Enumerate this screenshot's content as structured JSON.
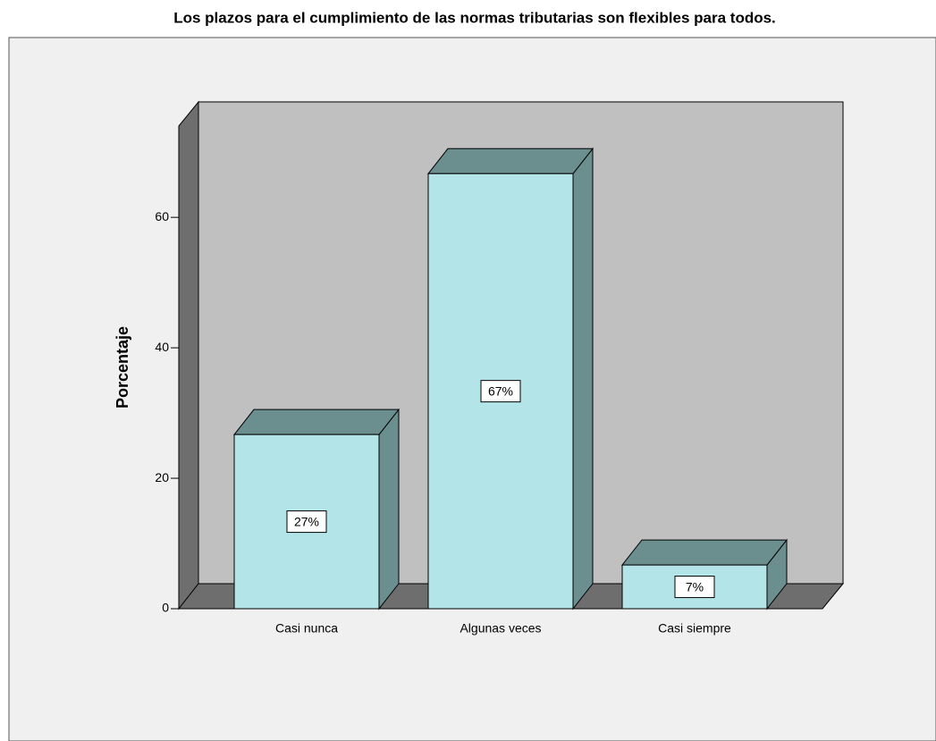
{
  "chart_data": {
    "type": "bar",
    "title": "Los plazos para el cumplimiento de las normas tributarias son flexibles para todos.",
    "y_label": "Porcentaje",
    "categories": [
      "Casi nunca",
      "Algunas veces",
      "Casi siempre"
    ],
    "values": [
      26.7,
      66.7,
      6.7
    ],
    "value_labels": [
      "27%",
      "67%",
      "7%"
    ],
    "color": "#b3e4e8",
    "side_color": "#6b8e8e",
    "ylim": [
      0,
      74
    ],
    "yticks": [
      0,
      20,
      40,
      60
    ]
  }
}
